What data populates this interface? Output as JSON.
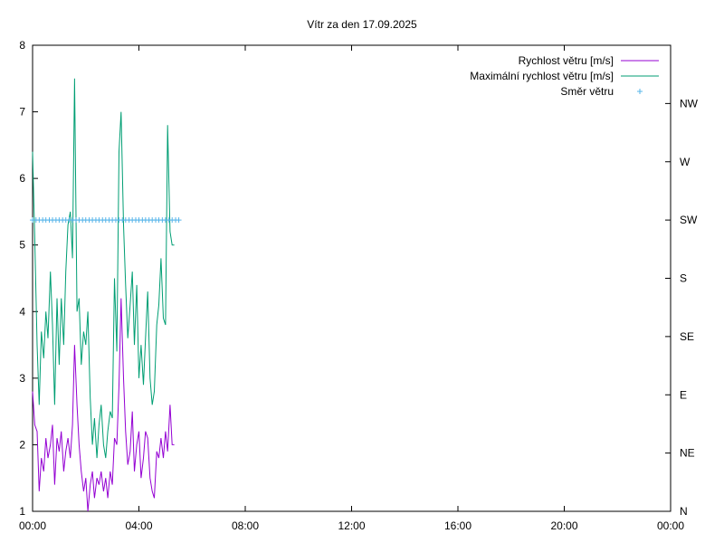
{
  "chart_data": {
    "type": "line",
    "title": "Vítr za den 17.09.2025",
    "x_ticks": [
      "00:00",
      "04:00",
      "08:00",
      "12:00",
      "16:00",
      "20:00",
      "00:00"
    ],
    "x_range_hours": [
      0,
      24
    ],
    "y_left": {
      "range": [
        1,
        8
      ],
      "ticks": [
        "1",
        "2",
        "3",
        "4",
        "5",
        "6",
        "7",
        "8"
      ]
    },
    "y_right": {
      "ticks": [
        "N",
        "NE",
        "E",
        "SE",
        "S",
        "SW",
        "W",
        "NW"
      ]
    },
    "grid": false,
    "legend_position": "top-right",
    "series": [
      {
        "name": "Rychlost větru [m/s]",
        "color": "#9400d3",
        "axis": "left",
        "x_hours": [
          0.0,
          0.08,
          0.17,
          0.25,
          0.33,
          0.42,
          0.5,
          0.58,
          0.67,
          0.75,
          0.83,
          0.92,
          1.0,
          1.08,
          1.17,
          1.25,
          1.33,
          1.42,
          1.5,
          1.58,
          1.67,
          1.75,
          1.83,
          1.92,
          2.0,
          2.08,
          2.17,
          2.25,
          2.33,
          2.42,
          2.5,
          2.58,
          2.67,
          2.75,
          2.83,
          2.92,
          3.0,
          3.08,
          3.17,
          3.25,
          3.33,
          3.42,
          3.5,
          3.58,
          3.67,
          3.75,
          3.83,
          3.92,
          4.0,
          4.08,
          4.17,
          4.25,
          4.33,
          4.42,
          4.5,
          4.58,
          4.67,
          4.75,
          4.83,
          4.92,
          5.0,
          5.08,
          5.17,
          5.25,
          5.33
        ],
        "values": [
          2.8,
          2.3,
          2.2,
          1.3,
          1.8,
          1.6,
          2.1,
          1.8,
          2.0,
          2.3,
          1.4,
          2.1,
          1.9,
          2.2,
          1.6,
          1.9,
          2.1,
          1.8,
          2.3,
          3.5,
          2.6,
          2.0,
          1.6,
          1.3,
          1.5,
          1.0,
          1.4,
          1.6,
          1.2,
          1.5,
          1.4,
          1.6,
          1.3,
          1.5,
          1.2,
          1.6,
          1.4,
          2.1,
          2.0,
          2.9,
          4.2,
          3.0,
          2.2,
          1.7,
          1.9,
          2.5,
          1.6,
          2.0,
          2.2,
          1.5,
          1.8,
          2.2,
          2.1,
          1.5,
          1.3,
          1.2,
          1.9,
          1.8,
          2.1,
          1.8,
          2.2,
          1.9,
          2.6,
          2.0,
          2.0
        ]
      },
      {
        "name": "Maximální rychlost větru [m/s]",
        "color": "#009e73",
        "axis": "left",
        "x_hours": [
          0.0,
          0.08,
          0.17,
          0.25,
          0.33,
          0.42,
          0.5,
          0.58,
          0.67,
          0.75,
          0.83,
          0.92,
          1.0,
          1.08,
          1.17,
          1.25,
          1.33,
          1.42,
          1.5,
          1.58,
          1.67,
          1.75,
          1.83,
          1.92,
          2.0,
          2.08,
          2.17,
          2.25,
          2.33,
          2.42,
          2.5,
          2.58,
          2.67,
          2.75,
          2.83,
          2.92,
          3.0,
          3.08,
          3.17,
          3.25,
          3.33,
          3.42,
          3.5,
          3.58,
          3.67,
          3.75,
          3.83,
          3.92,
          4.0,
          4.08,
          4.17,
          4.25,
          4.33,
          4.42,
          4.5,
          4.58,
          4.67,
          4.75,
          4.83,
          4.92,
          5.0,
          5.08,
          5.17,
          5.25,
          5.33
        ],
        "values": [
          6.4,
          5.1,
          3.5,
          2.6,
          3.7,
          3.3,
          4.0,
          3.6,
          4.6,
          3.8,
          2.6,
          4.2,
          3.2,
          4.2,
          3.5,
          4.6,
          5.3,
          5.5,
          4.8,
          7.5,
          4.0,
          4.2,
          3.2,
          3.7,
          3.5,
          4.0,
          2.7,
          2.0,
          2.4,
          1.8,
          2.3,
          2.6,
          2.0,
          1.8,
          2.2,
          2.5,
          2.4,
          4.5,
          3.4,
          6.4,
          7.0,
          5.3,
          4.4,
          3.6,
          4.1,
          4.6,
          3.5,
          4.4,
          3.0,
          3.5,
          2.9,
          3.6,
          4.3,
          3.0,
          2.6,
          2.8,
          3.8,
          4.1,
          4.8,
          3.9,
          3.8,
          6.8,
          5.2,
          5.0,
          5.0
        ]
      },
      {
        "name": "Směr větru",
        "color": "#56b4e9",
        "axis": "right",
        "marker": "+",
        "x_hours": [
          0.0,
          0.13,
          0.25,
          0.38,
          0.5,
          0.63,
          0.75,
          0.88,
          1.0,
          1.13,
          1.25,
          1.38,
          1.5,
          1.63,
          1.75,
          1.88,
          2.0,
          2.13,
          2.25,
          2.38,
          2.5,
          2.63,
          2.75,
          2.88,
          3.0,
          3.13,
          3.25,
          3.38,
          3.5,
          3.63,
          3.75,
          3.88,
          4.0,
          4.13,
          4.25,
          4.38,
          4.5,
          4.63,
          4.75,
          4.88,
          5.0,
          5.13,
          5.25,
          5.38,
          5.5
        ],
        "values": [
          "SW",
          "SW",
          "SW",
          "SW",
          "SW",
          "SW",
          "SW",
          "SW",
          "SW",
          "SW",
          "SW",
          "SW",
          "SW",
          "SW",
          "SW",
          "SW",
          "SW",
          "SW",
          "SW",
          "SW",
          "SW",
          "SW",
          "SW",
          "SW",
          "SW",
          "SW",
          "SW",
          "SW",
          "SW",
          "SW",
          "SW",
          "SW",
          "SW",
          "SW",
          "SW",
          "SW",
          "SW",
          "SW",
          "SW",
          "SW",
          "SW",
          "SW",
          "SW",
          "SW",
          "SW"
        ]
      }
    ]
  }
}
